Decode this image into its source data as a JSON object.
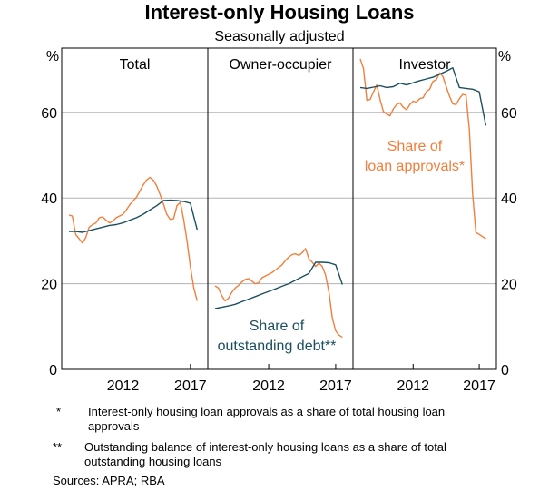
{
  "chart_data": {
    "type": "line",
    "title": "Interest-only Housing Loans",
    "subtitle": "Seasonally adjusted",
    "y_unit": "%",
    "ylim": [
      0,
      75
    ],
    "yticks": [
      0,
      20,
      40,
      60
    ],
    "xticks": [
      2012,
      2017
    ],
    "xlim": [
      2008.0,
      2017.75
    ],
    "grid": true,
    "colors": {
      "approvals": "#f07f3c",
      "outstanding": "#1b4f5f"
    },
    "annotations": {
      "approvals": [
        "Share of",
        "loan approvals*"
      ],
      "outstanding": [
        "Share of",
        "outstanding debt**"
      ]
    },
    "panels": [
      {
        "name": "Total",
        "series": [
          {
            "key": "approvals",
            "x": [
              2008.0,
              2008.25,
              2008.5,
              2008.75,
              2009.0,
              2009.25,
              2009.5,
              2009.75,
              2010.0,
              2010.25,
              2010.5,
              2010.75,
              2011.0,
              2011.25,
              2011.5,
              2011.75,
              2012.0,
              2012.25,
              2012.5,
              2012.75,
              2013.0,
              2013.25,
              2013.5,
              2013.75,
              2014.0,
              2014.25,
              2014.5,
              2014.75,
              2015.0,
              2015.25,
              2015.5,
              2015.75,
              2016.0,
              2016.25,
              2016.5,
              2016.75,
              2017.0,
              2017.25,
              2017.5
            ],
            "y": [
              36.0,
              35.8,
              31.5,
              30.5,
              29.5,
              30.8,
              33.2,
              33.8,
              34.2,
              35.4,
              35.6,
              34.8,
              34.2,
              34.6,
              35.4,
              35.8,
              36.2,
              37.2,
              38.4,
              39.3,
              40.2,
              41.6,
              43.0,
              44.2,
              44.8,
              44.2,
              42.8,
              40.8,
              38.6,
              36.2,
              35.0,
              35.2,
              38.2,
              39.0,
              35.0,
              30.0,
              24.0,
              19.0,
              16.0
            ]
          },
          {
            "key": "outstanding",
            "x": [
              2008.0,
              2008.5,
              2009.0,
              2009.5,
              2010.0,
              2010.5,
              2011.0,
              2011.5,
              2012.0,
              2012.5,
              2013.0,
              2013.5,
              2014.0,
              2014.5,
              2015.0,
              2015.5,
              2016.0,
              2016.5,
              2017.0,
              2017.5
            ],
            "y": [
              32.2,
              32.2,
              32.0,
              32.4,
              32.8,
              33.2,
              33.6,
              33.8,
              34.2,
              34.8,
              35.4,
              36.2,
              37.2,
              38.2,
              39.4,
              39.5,
              39.4,
              39.2,
              38.8,
              32.6
            ]
          }
        ]
      },
      {
        "name": "Owner-occupier",
        "series": [
          {
            "key": "approvals",
            "x": [
              2008.0,
              2008.25,
              2008.5,
              2008.75,
              2009.0,
              2009.25,
              2009.5,
              2009.75,
              2010.0,
              2010.25,
              2010.5,
              2010.75,
              2011.0,
              2011.25,
              2011.5,
              2011.75,
              2012.0,
              2012.25,
              2012.5,
              2012.75,
              2013.0,
              2013.25,
              2013.5,
              2013.75,
              2014.0,
              2014.25,
              2014.5,
              2014.75,
              2015.0,
              2015.25,
              2015.5,
              2015.75,
              2016.0,
              2016.25,
              2016.5,
              2016.75,
              2017.0,
              2017.25,
              2017.5
            ],
            "y": [
              19.5,
              19.0,
              17.2,
              16.0,
              16.6,
              18.0,
              19.0,
              19.6,
              20.4,
              21.0,
              21.2,
              20.6,
              20.0,
              20.2,
              21.4,
              21.8,
              22.2,
              22.6,
              23.2,
              23.8,
              24.4,
              25.4,
              26.2,
              26.8,
              27.0,
              26.6,
              27.2,
              28.2,
              25.8,
              25.0,
              24.0,
              24.8,
              24.0,
              22.0,
              18.0,
              12.0,
              9.0,
              8.0,
              7.5
            ]
          },
          {
            "key": "outstanding",
            "x": [
              2008.0,
              2008.5,
              2009.0,
              2009.5,
              2010.0,
              2010.5,
              2011.0,
              2011.5,
              2012.0,
              2012.5,
              2013.0,
              2013.5,
              2014.0,
              2014.5,
              2015.0,
              2015.5,
              2016.0,
              2016.5,
              2017.0,
              2017.5
            ],
            "y": [
              14.2,
              14.5,
              14.8,
              15.2,
              15.8,
              16.4,
              17.0,
              17.6,
              18.2,
              18.8,
              19.4,
              20.0,
              20.8,
              21.6,
              22.4,
              25.0,
              25.0,
              24.9,
              24.4,
              19.8
            ]
          }
        ]
      },
      {
        "name": "Investor",
        "series": [
          {
            "key": "approvals",
            "x": [
              2008.0,
              2008.25,
              2008.5,
              2008.75,
              2009.0,
              2009.25,
              2009.5,
              2009.75,
              2010.0,
              2010.25,
              2010.5,
              2010.75,
              2011.0,
              2011.25,
              2011.5,
              2011.75,
              2012.0,
              2012.25,
              2012.5,
              2012.75,
              2013.0,
              2013.25,
              2013.5,
              2013.75,
              2014.0,
              2014.25,
              2014.5,
              2014.75,
              2015.0,
              2015.25,
              2015.5,
              2015.75,
              2016.0,
              2016.25,
              2016.5,
              2016.75,
              2017.0,
              2017.25,
              2017.5
            ],
            "y": [
              72.5,
              70.2,
              62.8,
              63.0,
              64.8,
              66.4,
              63.0,
              60.2,
              59.6,
              59.2,
              60.8,
              61.8,
              62.2,
              61.2,
              60.6,
              61.8,
              62.6,
              62.4,
              63.2,
              63.4,
              64.8,
              65.4,
              67.2,
              67.6,
              69.2,
              68.4,
              66.0,
              63.8,
              62.0,
              61.8,
              63.2,
              64.2,
              64.0,
              56.0,
              41.0,
              32.0,
              31.5,
              31.0,
              30.5
            ]
          },
          {
            "key": "outstanding",
            "x": [
              2008.0,
              2008.5,
              2009.0,
              2009.5,
              2010.0,
              2010.5,
              2011.0,
              2011.5,
              2012.0,
              2012.5,
              2013.0,
              2013.5,
              2014.0,
              2014.5,
              2015.0,
              2015.5,
              2016.0,
              2016.5,
              2017.0,
              2017.5
            ],
            "y": [
              65.8,
              65.6,
              65.9,
              66.2,
              65.8,
              66.0,
              66.8,
              66.4,
              66.9,
              67.4,
              67.8,
              68.2,
              68.9,
              69.6,
              70.4,
              65.8,
              65.6,
              65.4,
              64.8,
              56.9
            ]
          }
        ]
      }
    ]
  },
  "footnotes": [
    {
      "mark": "*",
      "text": "Interest-only housing loan approvals as a share of total housing loan approvals"
    },
    {
      "mark": "**",
      "text": "Outstanding balance of interest-only housing loans as a share of total outstanding housing loans"
    }
  ],
  "sources": "Sources:   APRA; RBA"
}
